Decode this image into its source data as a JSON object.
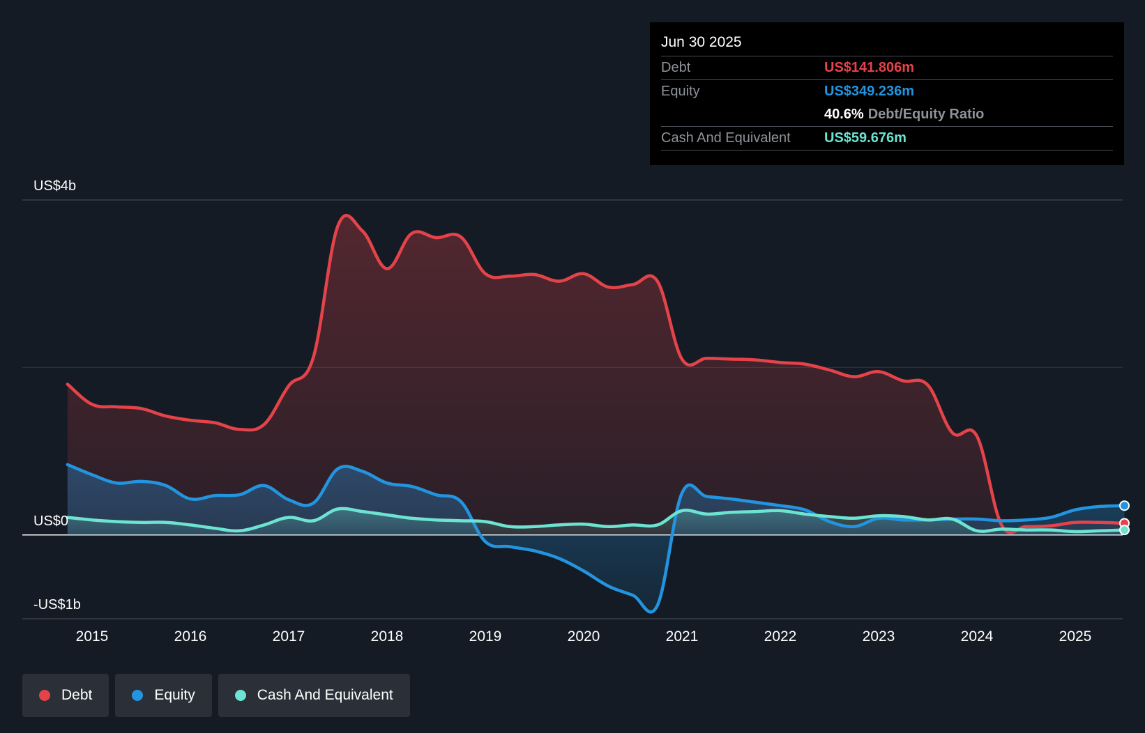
{
  "tooltip": {
    "date": "Jun 30 2025",
    "debt_label": "Debt",
    "debt_value": "US$141.806m",
    "equity_label": "Equity",
    "equity_value": "US$349.236m",
    "ratio_value": "40.6%",
    "ratio_label": "Debt/Equity Ratio",
    "cash_label": "Cash And Equivalent",
    "cash_value": "US$59.676m"
  },
  "legend": [
    {
      "label": "Debt",
      "color": "#e5434a"
    },
    {
      "label": "Equity",
      "color": "#2394df"
    },
    {
      "label": "Cash And Equivalent",
      "color": "#6de3d1"
    }
  ],
  "chart_data": {
    "type": "area",
    "ylim": [
      -1.0,
      4.0
    ],
    "y_unit": "US$ billions",
    "y_tick_labels": [
      {
        "value": 4,
        "label": "US$4b"
      },
      {
        "value": 0,
        "label": "US$0"
      },
      {
        "value": -1,
        "label": "-US$1b"
      }
    ],
    "gridlines": [
      4,
      2,
      0
    ],
    "x_range": [
      2014.75,
      2025.5
    ],
    "x_ticks": [
      "2015",
      "2016",
      "2017",
      "2018",
      "2019",
      "2020",
      "2021",
      "2022",
      "2023",
      "2024",
      "2025"
    ],
    "series": [
      {
        "name": "Debt",
        "color": "#e5434a",
        "points": [
          [
            2014.75,
            1.8
          ],
          [
            2015.0,
            1.56
          ],
          [
            2015.25,
            1.53
          ],
          [
            2015.5,
            1.51
          ],
          [
            2015.75,
            1.42
          ],
          [
            2016.0,
            1.37
          ],
          [
            2016.25,
            1.34
          ],
          [
            2016.5,
            1.26
          ],
          [
            2016.75,
            1.32
          ],
          [
            2017.0,
            1.78
          ],
          [
            2017.25,
            2.12
          ],
          [
            2017.5,
            3.69
          ],
          [
            2017.75,
            3.63
          ],
          [
            2018.0,
            3.18
          ],
          [
            2018.25,
            3.6
          ],
          [
            2018.5,
            3.55
          ],
          [
            2018.75,
            3.56
          ],
          [
            2019.0,
            3.12
          ],
          [
            2019.25,
            3.09
          ],
          [
            2019.5,
            3.11
          ],
          [
            2019.75,
            3.03
          ],
          [
            2020.0,
            3.12
          ],
          [
            2020.25,
            2.96
          ],
          [
            2020.5,
            2.99
          ],
          [
            2020.75,
            3.03
          ],
          [
            2021.0,
            2.1
          ],
          [
            2021.25,
            2.11
          ],
          [
            2021.5,
            2.1
          ],
          [
            2021.75,
            2.09
          ],
          [
            2022.0,
            2.06
          ],
          [
            2022.25,
            2.04
          ],
          [
            2022.5,
            1.97
          ],
          [
            2022.75,
            1.89
          ],
          [
            2023.0,
            1.95
          ],
          [
            2023.25,
            1.84
          ],
          [
            2023.5,
            1.79
          ],
          [
            2023.75,
            1.22
          ],
          [
            2024.0,
            1.18
          ],
          [
            2024.25,
            0.12
          ],
          [
            2024.5,
            0.1
          ],
          [
            2024.75,
            0.11
          ],
          [
            2025.0,
            0.15
          ],
          [
            2025.25,
            0.15
          ],
          [
            2025.5,
            0.14
          ]
        ]
      },
      {
        "name": "Equity",
        "color": "#2394df",
        "points": [
          [
            2014.75,
            0.84
          ],
          [
            2015.0,
            0.72
          ],
          [
            2015.25,
            0.62
          ],
          [
            2015.5,
            0.64
          ],
          [
            2015.75,
            0.59
          ],
          [
            2016.0,
            0.43
          ],
          [
            2016.25,
            0.47
          ],
          [
            2016.5,
            0.48
          ],
          [
            2016.75,
            0.59
          ],
          [
            2017.0,
            0.42
          ],
          [
            2017.25,
            0.38
          ],
          [
            2017.5,
            0.79
          ],
          [
            2017.75,
            0.76
          ],
          [
            2018.0,
            0.62
          ],
          [
            2018.25,
            0.58
          ],
          [
            2018.5,
            0.48
          ],
          [
            2018.75,
            0.4
          ],
          [
            2019.0,
            -0.08
          ],
          [
            2019.25,
            -0.14
          ],
          [
            2019.5,
            -0.19
          ],
          [
            2019.75,
            -0.28
          ],
          [
            2020.0,
            -0.43
          ],
          [
            2020.25,
            -0.61
          ],
          [
            2020.5,
            -0.72
          ],
          [
            2020.75,
            -0.84
          ],
          [
            2021.0,
            0.5
          ],
          [
            2021.25,
            0.46
          ],
          [
            2021.5,
            0.43
          ],
          [
            2021.75,
            0.39
          ],
          [
            2022.0,
            0.35
          ],
          [
            2022.25,
            0.3
          ],
          [
            2022.5,
            0.16
          ],
          [
            2022.75,
            0.1
          ],
          [
            2023.0,
            0.2
          ],
          [
            2023.25,
            0.18
          ],
          [
            2023.5,
            0.18
          ],
          [
            2023.75,
            0.19
          ],
          [
            2024.0,
            0.19
          ],
          [
            2024.25,
            0.17
          ],
          [
            2024.5,
            0.18
          ],
          [
            2024.75,
            0.21
          ],
          [
            2025.0,
            0.3
          ],
          [
            2025.25,
            0.34
          ],
          [
            2025.5,
            0.35
          ]
        ]
      },
      {
        "name": "Cash And Equivalent",
        "color": "#6de3d1",
        "points": [
          [
            2014.75,
            0.21
          ],
          [
            2015.0,
            0.18
          ],
          [
            2015.25,
            0.16
          ],
          [
            2015.5,
            0.15
          ],
          [
            2015.75,
            0.15
          ],
          [
            2016.0,
            0.12
          ],
          [
            2016.25,
            0.08
          ],
          [
            2016.5,
            0.05
          ],
          [
            2016.75,
            0.12
          ],
          [
            2017.0,
            0.21
          ],
          [
            2017.25,
            0.17
          ],
          [
            2017.5,
            0.31
          ],
          [
            2017.75,
            0.28
          ],
          [
            2018.0,
            0.24
          ],
          [
            2018.25,
            0.2
          ],
          [
            2018.5,
            0.18
          ],
          [
            2018.75,
            0.17
          ],
          [
            2019.0,
            0.16
          ],
          [
            2019.25,
            0.1
          ],
          [
            2019.5,
            0.1
          ],
          [
            2019.75,
            0.12
          ],
          [
            2020.0,
            0.13
          ],
          [
            2020.25,
            0.1
          ],
          [
            2020.5,
            0.12
          ],
          [
            2020.75,
            0.12
          ],
          [
            2021.0,
            0.29
          ],
          [
            2021.25,
            0.25
          ],
          [
            2021.5,
            0.27
          ],
          [
            2021.75,
            0.28
          ],
          [
            2022.0,
            0.29
          ],
          [
            2022.25,
            0.25
          ],
          [
            2022.5,
            0.22
          ],
          [
            2022.75,
            0.2
          ],
          [
            2023.0,
            0.23
          ],
          [
            2023.25,
            0.22
          ],
          [
            2023.5,
            0.18
          ],
          [
            2023.75,
            0.19
          ],
          [
            2024.0,
            0.05
          ],
          [
            2024.25,
            0.07
          ],
          [
            2024.5,
            0.06
          ],
          [
            2024.75,
            0.06
          ],
          [
            2025.0,
            0.04
          ],
          [
            2025.25,
            0.05
          ],
          [
            2025.5,
            0.06
          ]
        ]
      }
    ]
  }
}
